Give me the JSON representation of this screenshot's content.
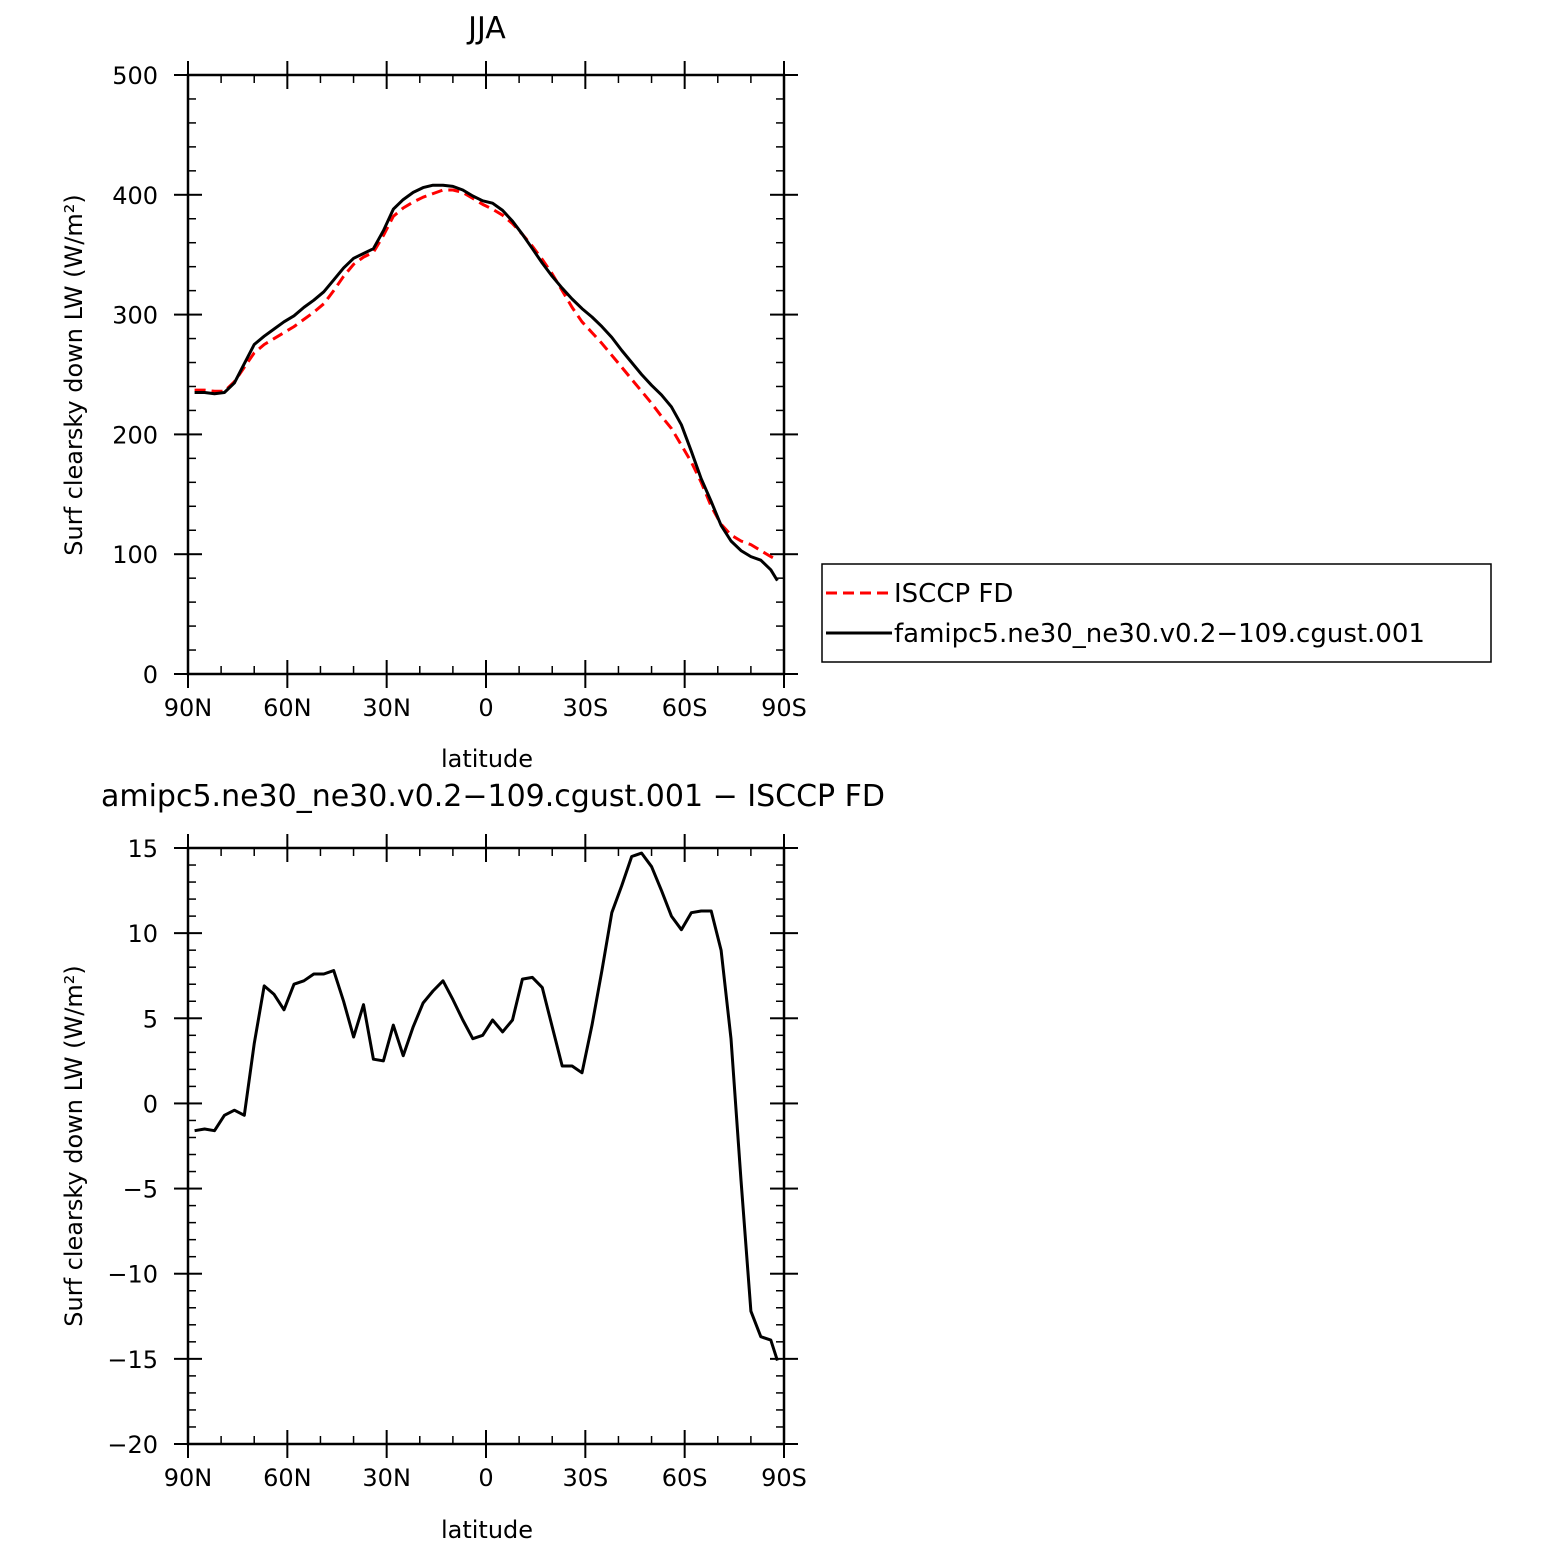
{
  "figure": {
    "title": "JJA",
    "diff_title": "amipc5.ne30_ne30.v0.2−109.cgust.001 − ISCCP FD"
  },
  "colors": {
    "obs": "#ff0000",
    "model": "#000000",
    "axis": "#000000"
  },
  "chart_data": [
    {
      "type": "line",
      "title": "JJA",
      "xlabel": "latitude",
      "ylabel": "Surf clearsky down LW (W/m²)",
      "xlim": [
        90,
        -90
      ],
      "ylim": [
        0,
        500
      ],
      "xticks": [
        90,
        60,
        30,
        0,
        -30,
        -60,
        -90
      ],
      "xtick_labels": [
        "90N",
        "60N",
        "30N",
        "0",
        "30S",
        "60S",
        "90S"
      ],
      "yticks": [
        0,
        100,
        200,
        300,
        400,
        500
      ],
      "ytick_labels": [
        "0",
        "100",
        "200",
        "300",
        "400",
        "500"
      ],
      "grid": false,
      "legend_position": "right",
      "series": [
        {
          "name": "ISCCP FD",
          "style": "dashed",
          "color": "#ff0000",
          "x": [
            88,
            85,
            82,
            79,
            76,
            73,
            70,
            67,
            64,
            61,
            58,
            55,
            52,
            49,
            46,
            43,
            40,
            37,
            34,
            31,
            28,
            25,
            22,
            19,
            16,
            13,
            10,
            7,
            4,
            1,
            -2,
            -5,
            -8,
            -11,
            -14,
            -17,
            -20,
            -23,
            -26,
            -29,
            -32,
            -35,
            -38,
            -41,
            -44,
            -47,
            -50,
            -53,
            -56,
            -59,
            -62,
            -65,
            -68,
            -71,
            -74,
            -77,
            -80,
            -83,
            -86,
            -88
          ],
          "y": [
            237,
            237,
            236,
            236,
            244,
            256,
            268,
            275,
            280,
            285,
            290,
            296,
            302,
            309,
            320,
            332,
            342,
            348,
            352,
            366,
            382,
            389,
            394,
            398,
            401,
            404,
            404,
            402,
            397,
            392,
            388,
            383,
            376,
            367,
            357,
            346,
            334,
            320,
            306,
            294,
            285,
            276,
            266,
            256,
            246,
            236,
            226,
            215,
            205,
            191,
            177,
            160,
            140,
            125,
            116,
            111,
            108,
            103,
            98,
            95
          ]
        },
        {
          "name": "famipc5.ne30_ne30.v0.2−109.cgust.001",
          "style": "solid",
          "color": "#000000",
          "x": [
            88,
            85,
            82,
            79,
            76,
            73,
            70,
            67,
            64,
            61,
            58,
            55,
            52,
            49,
            46,
            43,
            40,
            37,
            34,
            31,
            28,
            25,
            22,
            19,
            16,
            13,
            10,
            7,
            4,
            1,
            -2,
            -5,
            -8,
            -11,
            -14,
            -17,
            -20,
            -23,
            -26,
            -29,
            -32,
            -35,
            -38,
            -41,
            -44,
            -47,
            -50,
            -53,
            -56,
            -59,
            -62,
            -65,
            -68,
            -71,
            -74,
            -77,
            -80,
            -83,
            -86,
            -88
          ],
          "y": [
            235,
            235,
            234,
            235,
            243,
            259,
            275,
            282,
            288,
            294,
            299,
            306,
            312,
            319,
            329,
            339,
            347,
            351,
            355,
            370,
            388,
            396,
            402,
            406,
            408,
            408,
            407,
            404,
            399,
            395,
            393,
            387,
            378,
            367,
            355,
            343,
            332,
            322,
            313,
            305,
            298,
            290,
            281,
            270,
            260,
            250,
            241,
            233,
            223,
            208,
            186,
            163,
            144,
            124,
            111,
            103,
            98,
            95,
            87,
            78
          ]
        }
      ]
    },
    {
      "type": "line",
      "title": "amipc5.ne30_ne30.v0.2−109.cgust.001 − ISCCP FD",
      "xlabel": "latitude",
      "ylabel": "Surf clearsky down LW (W/m²)",
      "xlim": [
        90,
        -90
      ],
      "ylim": [
        -20,
        15
      ],
      "xticks": [
        90,
        60,
        30,
        0,
        -30,
        -60,
        -90
      ],
      "xtick_labels": [
        "90N",
        "60N",
        "30N",
        "0",
        "30S",
        "60S",
        "90S"
      ],
      "yticks": [
        -20,
        -15,
        -10,
        -5,
        0,
        5,
        10,
        15
      ],
      "ytick_labels": [
        "−20",
        "−15",
        "−10",
        "−5",
        "0",
        "5",
        "10",
        "15"
      ],
      "grid": false,
      "series": [
        {
          "style": "solid",
          "color": "#000000",
          "x": [
            88,
            85,
            82,
            79,
            76,
            73,
            70,
            67,
            64,
            61,
            58,
            55,
            52,
            49,
            46,
            43,
            40,
            37,
            34,
            31,
            28,
            25,
            22,
            19,
            16,
            13,
            10,
            7,
            4,
            1,
            -2,
            -5,
            -8,
            -11,
            -14,
            -17,
            -20,
            -23,
            -26,
            -29,
            -32,
            -35,
            -38,
            -41,
            -44,
            -47,
            -50,
            -53,
            -56,
            -59,
            -62,
            -65,
            -68,
            -71,
            -74,
            -77,
            -80,
            -83,
            -86,
            -88
          ],
          "y": [
            -1.6,
            -1.5,
            -1.6,
            -0.7,
            -0.4,
            -0.7,
            3.5,
            6.9,
            6.4,
            5.5,
            7.0,
            7.2,
            7.6,
            7.6,
            7.8,
            6.0,
            3.9,
            5.8,
            2.6,
            2.5,
            4.6,
            2.8,
            4.5,
            5.9,
            6.6,
            7.2,
            6.1,
            4.9,
            3.8,
            4.0,
            4.9,
            4.2,
            4.9,
            7.3,
            7.4,
            6.8,
            4.5,
            2.2,
            2.2,
            1.8,
            4.6,
            7.8,
            11.2,
            12.8,
            14.5,
            14.7,
            13.9,
            12.5,
            11.0,
            10.2,
            11.2,
            11.3,
            11.3,
            9.0,
            3.8,
            -4.5,
            -12.2,
            -13.7,
            -13.9,
            -15.1
          ]
        }
      ]
    }
  ]
}
